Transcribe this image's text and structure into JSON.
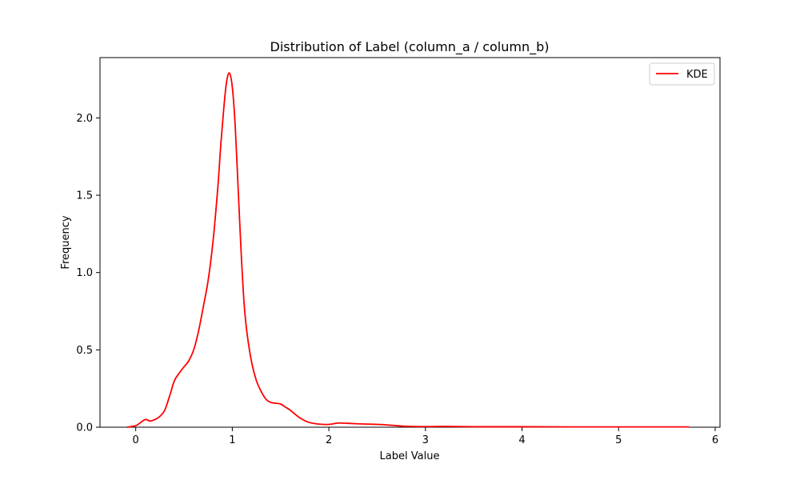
{
  "chart_data": {
    "type": "line",
    "title": "Distribution of Label (column_a / column_b)",
    "xlabel": "Label Value",
    "ylabel": "Frequency",
    "xlim": [
      -0.37,
      6.05
    ],
    "ylim": [
      0,
      2.39
    ],
    "x_ticks": [
      0,
      1,
      2,
      3,
      4,
      5,
      6
    ],
    "x_tick_labels": [
      "0",
      "1",
      "2",
      "3",
      "4",
      "5",
      "6"
    ],
    "y_ticks": [
      0.0,
      0.5,
      1.0,
      1.5,
      2.0
    ],
    "y_tick_labels": [
      "0.0",
      "0.5",
      "1.0",
      "1.5",
      "2.0"
    ],
    "grid": false,
    "legend_placement": "top-right",
    "series": [
      {
        "name": "KDE",
        "color": "#ff0000",
        "x": [
          -0.09,
          0.0,
          0.05,
          0.1,
          0.15,
          0.2,
          0.25,
          0.3,
          0.35,
          0.4,
          0.45,
          0.5,
          0.55,
          0.6,
          0.65,
          0.7,
          0.75,
          0.8,
          0.85,
          0.88,
          0.91,
          0.94,
          0.97,
          1.0,
          1.03,
          1.06,
          1.09,
          1.12,
          1.15,
          1.2,
          1.25,
          1.3,
          1.35,
          1.4,
          1.45,
          1.5,
          1.55,
          1.6,
          1.7,
          1.8,
          1.9,
          2.0,
          2.1,
          2.2,
          2.3,
          2.4,
          2.5,
          2.6,
          2.7,
          2.8,
          3.0,
          3.2,
          3.5,
          4.0,
          4.5,
          5.0,
          5.5,
          5.73
        ],
        "y": [
          0.0,
          0.01,
          0.03,
          0.05,
          0.04,
          0.05,
          0.07,
          0.11,
          0.2,
          0.3,
          0.35,
          0.39,
          0.43,
          0.5,
          0.62,
          0.78,
          0.95,
          1.2,
          1.55,
          1.82,
          2.05,
          2.23,
          2.29,
          2.2,
          1.95,
          1.55,
          1.15,
          0.82,
          0.62,
          0.42,
          0.3,
          0.23,
          0.18,
          0.16,
          0.155,
          0.15,
          0.13,
          0.11,
          0.06,
          0.03,
          0.02,
          0.018,
          0.027,
          0.025,
          0.022,
          0.02,
          0.018,
          0.015,
          0.01,
          0.006,
          0.004,
          0.005,
          0.003,
          0.003,
          0.002,
          0.002,
          0.002,
          0.002
        ]
      }
    ]
  }
}
